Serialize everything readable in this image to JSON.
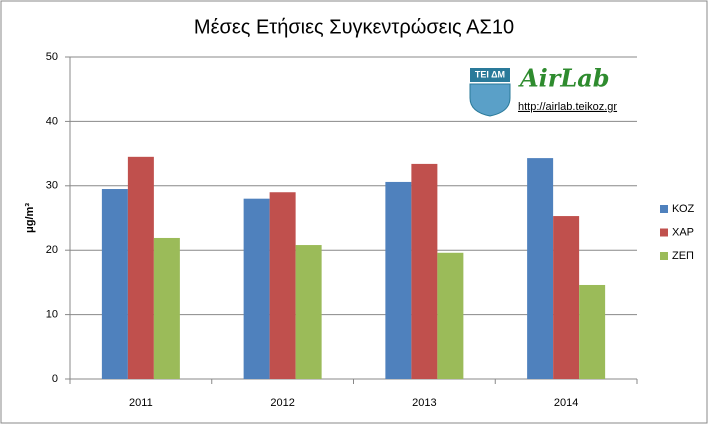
{
  "chart_data": {
    "type": "bar",
    "title": "Μέσες Ετήσιες Συγκεντρώσεις ΑΣ10",
    "y_label": "μg/m³",
    "categories": [
      "2011",
      "2012",
      "2013",
      "2014"
    ],
    "series": [
      {
        "name": "ΚΟΖ",
        "color": "#4f81bd",
        "values": [
          29.5,
          28.0,
          30.6,
          34.3
        ]
      },
      {
        "name": "ΧΑΡ",
        "color": "#c0504d",
        "values": [
          34.5,
          29.0,
          33.4,
          25.3
        ]
      },
      {
        "name": "ΖΕΠ",
        "color": "#9bbb59",
        "values": [
          21.9,
          20.8,
          19.6,
          14.6
        ]
      }
    ],
    "ylim": [
      0,
      50
    ],
    "yticks": [
      0,
      10,
      20,
      30,
      40,
      50
    ],
    "grid": true,
    "legend": "right"
  },
  "logo": {
    "badge": "ΤΕΙ ΔΜ",
    "name": "AirLab",
    "url": "http://airlab.teikoz.gr"
  }
}
